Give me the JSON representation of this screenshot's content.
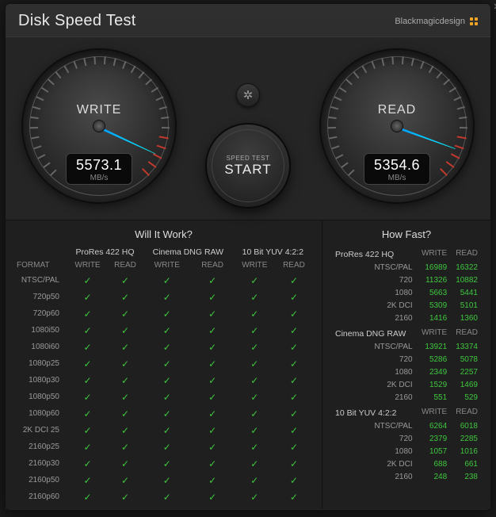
{
  "title": "Disk Speed Test",
  "brand": "Blackmagicdesign",
  "gauges": {
    "write": {
      "label": "WRITE",
      "value": "5573.1",
      "unit": "MB/s",
      "needle_deg": 115
    },
    "read": {
      "label": "READ",
      "value": "5354.6",
      "unit": "MB/s",
      "needle_deg": 110
    }
  },
  "settings_icon": "✻",
  "start": {
    "upper": "SPEED TEST",
    "main": "START"
  },
  "will_it_work": {
    "title": "Will It Work?",
    "format_header": "FORMAT",
    "groups": [
      "ProRes 422 HQ",
      "Cinema DNG RAW",
      "10 Bit YUV 4:2:2"
    ],
    "sub": [
      "WRITE",
      "READ"
    ],
    "rows": [
      {
        "fmt": "NTSC/PAL",
        "v": [
          true,
          true,
          true,
          true,
          true,
          true
        ]
      },
      {
        "fmt": "720p50",
        "v": [
          true,
          true,
          true,
          true,
          true,
          true
        ]
      },
      {
        "fmt": "720p60",
        "v": [
          true,
          true,
          true,
          true,
          true,
          true
        ]
      },
      {
        "fmt": "1080i50",
        "v": [
          true,
          true,
          true,
          true,
          true,
          true
        ]
      },
      {
        "fmt": "1080i60",
        "v": [
          true,
          true,
          true,
          true,
          true,
          true
        ]
      },
      {
        "fmt": "1080p25",
        "v": [
          true,
          true,
          true,
          true,
          true,
          true
        ]
      },
      {
        "fmt": "1080p30",
        "v": [
          true,
          true,
          true,
          true,
          true,
          true
        ]
      },
      {
        "fmt": "1080p50",
        "v": [
          true,
          true,
          true,
          true,
          true,
          true
        ]
      },
      {
        "fmt": "1080p60",
        "v": [
          true,
          true,
          true,
          true,
          true,
          true
        ]
      },
      {
        "fmt": "2K DCI 25",
        "v": [
          true,
          true,
          true,
          true,
          true,
          true
        ]
      },
      {
        "fmt": "2160p25",
        "v": [
          true,
          true,
          true,
          true,
          true,
          true
        ]
      },
      {
        "fmt": "2160p30",
        "v": [
          true,
          true,
          true,
          true,
          true,
          true
        ]
      },
      {
        "fmt": "2160p50",
        "v": [
          true,
          true,
          true,
          true,
          true,
          true
        ]
      },
      {
        "fmt": "2160p60",
        "v": [
          true,
          true,
          true,
          true,
          true,
          true
        ]
      }
    ]
  },
  "how_fast": {
    "title": "How Fast?",
    "sub": [
      "WRITE",
      "READ"
    ],
    "sections": [
      {
        "name": "ProRes 422 HQ",
        "rows": [
          {
            "res": "NTSC/PAL",
            "w": "16989",
            "r": "16322"
          },
          {
            "res": "720",
            "w": "11326",
            "r": "10882"
          },
          {
            "res": "1080",
            "w": "5663",
            "r": "5441"
          },
          {
            "res": "2K DCI",
            "w": "5309",
            "r": "5101"
          },
          {
            "res": "2160",
            "w": "1416",
            "r": "1360"
          }
        ]
      },
      {
        "name": "Cinema DNG RAW",
        "rows": [
          {
            "res": "NTSC/PAL",
            "w": "13921",
            "r": "13374"
          },
          {
            "res": "720",
            "w": "5286",
            "r": "5078"
          },
          {
            "res": "1080",
            "w": "2349",
            "r": "2257"
          },
          {
            "res": "2K DCI",
            "w": "1529",
            "r": "1469"
          },
          {
            "res": "2160",
            "w": "551",
            "r": "529"
          }
        ]
      },
      {
        "name": "10 Bit YUV 4:2:2",
        "rows": [
          {
            "res": "NTSC/PAL",
            "w": "6264",
            "r": "6018"
          },
          {
            "res": "720",
            "w": "2379",
            "r": "2285"
          },
          {
            "res": "1080",
            "w": "1057",
            "r": "1016"
          },
          {
            "res": "2K DCI",
            "w": "688",
            "r": "661"
          },
          {
            "res": "2160",
            "w": "248",
            "r": "238"
          }
        ]
      }
    ]
  },
  "colors": {
    "check": "#3ec73e",
    "needle": "#0bf8ff",
    "tick_red": "#c0392b"
  }
}
